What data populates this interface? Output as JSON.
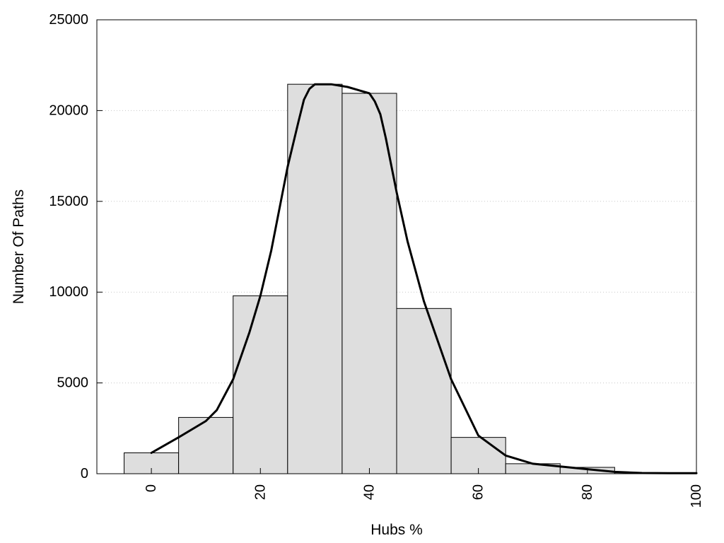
{
  "chart_data": {
    "type": "bar",
    "title": "",
    "xlabel": "Hubs %",
    "ylabel": "Number Of Paths",
    "xlim": [
      -10,
      100
    ],
    "ylim": [
      0,
      25000
    ],
    "xticks": [
      0,
      20,
      40,
      60,
      80,
      100
    ],
    "yticks": [
      0,
      5000,
      10000,
      15000,
      20000,
      25000
    ],
    "grid": "horizontal-dotted",
    "bin_width": 10,
    "bins": [
      {
        "center": 0,
        "value": 1150
      },
      {
        "center": 10,
        "value": 3100
      },
      {
        "center": 20,
        "value": 9800
      },
      {
        "center": 30,
        "value": 21450
      },
      {
        "center": 40,
        "value": 20950
      },
      {
        "center": 50,
        "value": 9100
      },
      {
        "center": 60,
        "value": 2000
      },
      {
        "center": 70,
        "value": 550
      },
      {
        "center": 80,
        "value": 350
      },
      {
        "center": 90,
        "value": 50
      }
    ],
    "density_curve": {
      "x": [
        0,
        5,
        10,
        12,
        15,
        18,
        20,
        22,
        25,
        27,
        28,
        29,
        30,
        33,
        36,
        40,
        41,
        42,
        43,
        45,
        47,
        50,
        55,
        60,
        65,
        70,
        75,
        80,
        85,
        90,
        95,
        100
      ],
      "y": [
        1150,
        2000,
        2900,
        3500,
        5200,
        7800,
        9800,
        12300,
        16900,
        19400,
        20600,
        21200,
        21450,
        21450,
        21300,
        20950,
        20500,
        19800,
        18500,
        15500,
        12800,
        9500,
        5200,
        2100,
        1000,
        550,
        400,
        250,
        100,
        40,
        30,
        30
      ]
    }
  }
}
